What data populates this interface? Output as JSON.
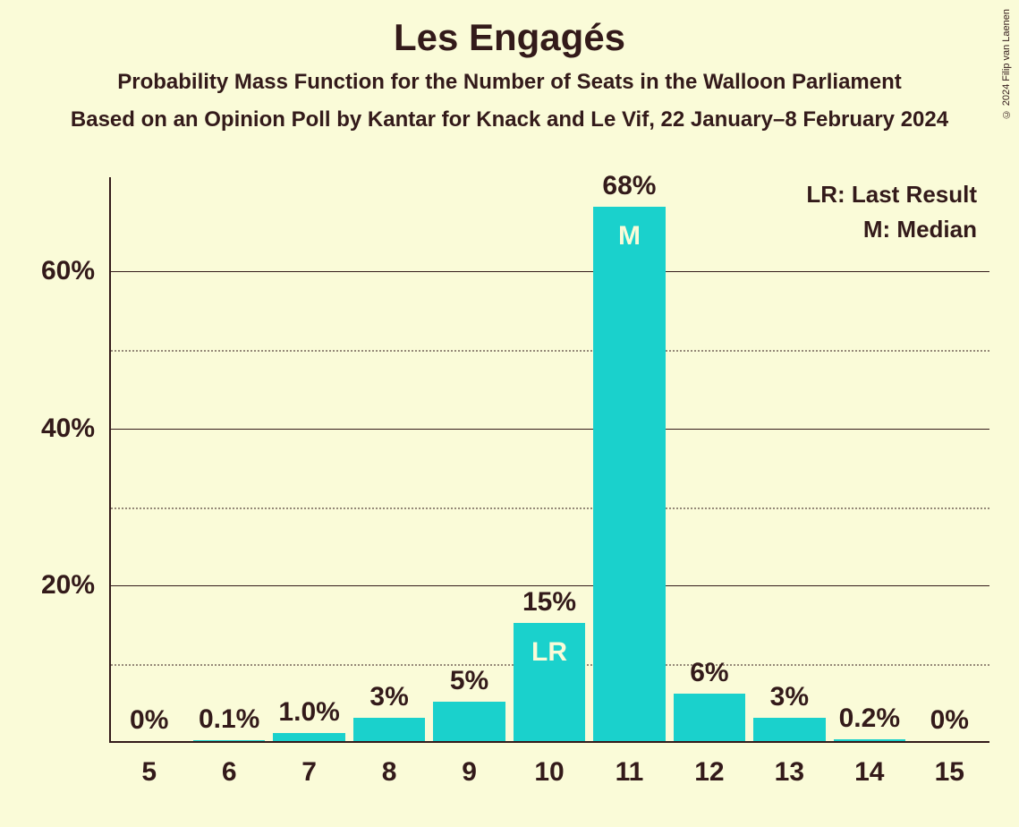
{
  "chart": {
    "type": "bar",
    "title": "Les Engagés",
    "subtitle": "Probability Mass Function for the Number of Seats in the Walloon Parliament",
    "source": "Based on an Opinion Poll by Kantar for Knack and Le Vif, 22 January–8 February 2024",
    "copyright": "© 2024 Filip van Laenen",
    "background_color": "#fafbd8",
    "text_color": "#331a1a",
    "bar_color": "#1ad1cc",
    "inner_label_color": "#fafbd8",
    "title_fontsize": 42,
    "subtitle_fontsize": 24,
    "axis_label_fontsize": 30,
    "legend_fontsize": 26,
    "ylim_max": 72,
    "y_major_ticks": [
      20,
      40,
      60
    ],
    "y_minor_ticks": [
      10,
      30,
      50
    ],
    "categories": [
      "5",
      "6",
      "7",
      "8",
      "9",
      "10",
      "11",
      "12",
      "13",
      "14",
      "15"
    ],
    "values": [
      0,
      0.1,
      1.0,
      3,
      5,
      15,
      68,
      6,
      3,
      0.2,
      0
    ],
    "value_labels": [
      "0%",
      "0.1%",
      "1.0%",
      "3%",
      "5%",
      "15%",
      "68%",
      "6%",
      "3%",
      "0.2%",
      "0%"
    ],
    "inner_labels": [
      null,
      null,
      null,
      null,
      null,
      "LR",
      "M",
      null,
      null,
      null,
      null
    ],
    "bar_width_ratio": 0.9,
    "legend": {
      "lr": "LR: Last Result",
      "m": "M: Median"
    },
    "y_tick_labels": {
      "20": "20%",
      "40": "40%",
      "60": "60%"
    }
  }
}
